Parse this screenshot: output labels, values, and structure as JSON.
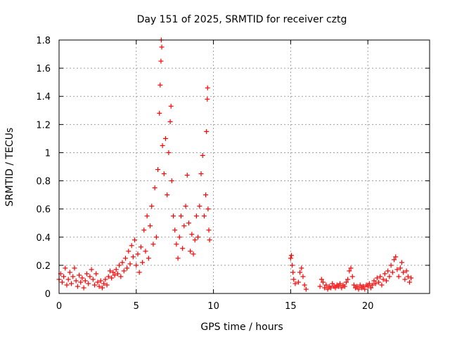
{
  "chart_data": {
    "type": "scatter",
    "title": "Day 151 of 2025, SRMTID for receiver cztg",
    "xlabel": "GPS time / hours",
    "ylabel": "SRMTID / TECUs",
    "xlim": [
      0,
      24
    ],
    "ylim": [
      0,
      1.8
    ],
    "xticks": [
      0,
      5,
      10,
      15,
      20
    ],
    "xtick_labels": [
      "0",
      "5",
      "10",
      "15",
      "20"
    ],
    "yticks": [
      0,
      0.2,
      0.4,
      0.6,
      0.8,
      1.0,
      1.2,
      1.4,
      1.6,
      1.8
    ],
    "ytick_labels": [
      "0",
      "0.2",
      "0.4",
      "0.6",
      "0.8",
      "1",
      "1.2",
      "1.4",
      "1.6",
      "1.8"
    ],
    "grid": true,
    "series": [
      {
        "name": "SRMTID",
        "marker": "plus",
        "color": "#ff0000",
        "points": [
          [
            0.0,
            0.1
          ],
          [
            0.1,
            0.14
          ],
          [
            0.2,
            0.08
          ],
          [
            0.3,
            0.12
          ],
          [
            0.4,
            0.18
          ],
          [
            0.5,
            0.06
          ],
          [
            0.6,
            0.1
          ],
          [
            0.7,
            0.15
          ],
          [
            0.8,
            0.07
          ],
          [
            0.9,
            0.12
          ],
          [
            1.0,
            0.18
          ],
          [
            1.1,
            0.09
          ],
          [
            1.2,
            0.05
          ],
          [
            1.3,
            0.13
          ],
          [
            1.4,
            0.08
          ],
          [
            1.5,
            0.11
          ],
          [
            1.6,
            0.04
          ],
          [
            1.7,
            0.09
          ],
          [
            1.8,
            0.14
          ],
          [
            1.9,
            0.07
          ],
          [
            2.0,
            0.12
          ],
          [
            2.1,
            0.17
          ],
          [
            2.2,
            0.1
          ],
          [
            2.3,
            0.06
          ],
          [
            2.4,
            0.14
          ],
          [
            2.5,
            0.08
          ],
          [
            2.6,
            0.05
          ],
          [
            2.7,
            0.09
          ],
          [
            2.8,
            0.04
          ],
          [
            2.9,
            0.07
          ],
          [
            3.0,
            0.1
          ],
          [
            3.1,
            0.06
          ],
          [
            3.2,
            0.12
          ],
          [
            3.3,
            0.16
          ],
          [
            3.4,
            0.11
          ],
          [
            3.5,
            0.15
          ],
          [
            3.6,
            0.13
          ],
          [
            3.7,
            0.17
          ],
          [
            3.8,
            0.14
          ],
          [
            3.9,
            0.2
          ],
          [
            4.0,
            0.12
          ],
          [
            4.1,
            0.22
          ],
          [
            4.2,
            0.16
          ],
          [
            4.3,
            0.25
          ],
          [
            4.4,
            0.18
          ],
          [
            4.5,
            0.3
          ],
          [
            4.6,
            0.21
          ],
          [
            4.7,
            0.34
          ],
          [
            4.8,
            0.26
          ],
          [
            4.9,
            0.38
          ],
          [
            5.0,
            0.2
          ],
          [
            5.1,
            0.28
          ],
          [
            5.2,
            0.15
          ],
          [
            5.3,
            0.33
          ],
          [
            5.4,
            0.22
          ],
          [
            5.5,
            0.45
          ],
          [
            5.6,
            0.3
          ],
          [
            5.7,
            0.55
          ],
          [
            5.8,
            0.25
          ],
          [
            5.9,
            0.48
          ],
          [
            6.0,
            0.62
          ],
          [
            6.1,
            0.35
          ],
          [
            6.2,
            0.75
          ],
          [
            6.3,
            0.4
          ],
          [
            6.4,
            0.88
          ],
          [
            6.5,
            1.28
          ],
          [
            6.55,
            1.48
          ],
          [
            6.6,
            1.65
          ],
          [
            6.62,
            1.8
          ],
          [
            6.65,
            1.75
          ],
          [
            6.7,
            1.05
          ],
          [
            6.8,
            0.85
          ],
          [
            6.9,
            1.1
          ],
          [
            7.0,
            0.7
          ],
          [
            7.1,
            1.0
          ],
          [
            7.2,
            1.22
          ],
          [
            7.25,
            1.33
          ],
          [
            7.3,
            0.8
          ],
          [
            7.4,
            0.55
          ],
          [
            7.5,
            0.45
          ],
          [
            7.6,
            0.35
          ],
          [
            7.7,
            0.25
          ],
          [
            7.8,
            0.4
          ],
          [
            7.9,
            0.55
          ],
          [
            8.0,
            0.32
          ],
          [
            8.1,
            0.48
          ],
          [
            8.2,
            0.62
          ],
          [
            8.3,
            0.84
          ],
          [
            8.4,
            0.5
          ],
          [
            8.5,
            0.3
          ],
          [
            8.6,
            0.42
          ],
          [
            8.7,
            0.28
          ],
          [
            8.8,
            0.38
          ],
          [
            8.9,
            0.55
          ],
          [
            9.0,
            0.4
          ],
          [
            9.1,
            0.62
          ],
          [
            9.2,
            0.85
          ],
          [
            9.3,
            0.98
          ],
          [
            9.4,
            0.55
          ],
          [
            9.5,
            0.7
          ],
          [
            9.55,
            1.15
          ],
          [
            9.6,
            1.38
          ],
          [
            9.62,
            1.46
          ],
          [
            9.65,
            0.6
          ],
          [
            9.7,
            0.45
          ],
          [
            9.75,
            0.38
          ],
          [
            15.0,
            0.25
          ],
          [
            15.05,
            0.27
          ],
          [
            15.1,
            0.2
          ],
          [
            15.15,
            0.15
          ],
          [
            15.2,
            0.1
          ],
          [
            15.3,
            0.07
          ],
          [
            15.5,
            0.08
          ],
          [
            15.6,
            0.15
          ],
          [
            15.7,
            0.18
          ],
          [
            15.8,
            0.12
          ],
          [
            15.9,
            0.06
          ],
          [
            16.0,
            0.03
          ],
          [
            16.9,
            0.05
          ],
          [
            17.0,
            0.1
          ],
          [
            17.1,
            0.08
          ],
          [
            17.2,
            0.04
          ],
          [
            17.3,
            0.06
          ],
          [
            17.4,
            0.03
          ],
          [
            17.5,
            0.05
          ],
          [
            17.6,
            0.04
          ],
          [
            17.7,
            0.07
          ],
          [
            17.8,
            0.05
          ],
          [
            17.9,
            0.04
          ],
          [
            18.0,
            0.06
          ],
          [
            18.1,
            0.05
          ],
          [
            18.2,
            0.07
          ],
          [
            18.3,
            0.04
          ],
          [
            18.4,
            0.06
          ],
          [
            18.5,
            0.05
          ],
          [
            18.6,
            0.08
          ],
          [
            18.7,
            0.1
          ],
          [
            18.8,
            0.16
          ],
          [
            18.9,
            0.18
          ],
          [
            19.0,
            0.12
          ],
          [
            19.1,
            0.06
          ],
          [
            19.2,
            0.04
          ],
          [
            19.3,
            0.05
          ],
          [
            19.4,
            0.03
          ],
          [
            19.5,
            0.06
          ],
          [
            19.6,
            0.04
          ],
          [
            19.7,
            0.05
          ],
          [
            19.8,
            0.03
          ],
          [
            19.9,
            0.06
          ],
          [
            20.0,
            0.05
          ],
          [
            20.1,
            0.07
          ],
          [
            20.2,
            0.04
          ],
          [
            20.3,
            0.06
          ],
          [
            20.4,
            0.09
          ],
          [
            20.5,
            0.07
          ],
          [
            20.6,
            0.11
          ],
          [
            20.7,
            0.08
          ],
          [
            20.8,
            0.12
          ],
          [
            20.9,
            0.06
          ],
          [
            21.0,
            0.1
          ],
          [
            21.1,
            0.14
          ],
          [
            21.2,
            0.09
          ],
          [
            21.3,
            0.16
          ],
          [
            21.4,
            0.12
          ],
          [
            21.5,
            0.2
          ],
          [
            21.6,
            0.15
          ],
          [
            21.7,
            0.24
          ],
          [
            21.8,
            0.26
          ],
          [
            21.9,
            0.17
          ],
          [
            22.0,
            0.12
          ],
          [
            22.1,
            0.18
          ],
          [
            22.2,
            0.22
          ],
          [
            22.3,
            0.15
          ],
          [
            22.4,
            0.1
          ],
          [
            22.5,
            0.16
          ],
          [
            22.6,
            0.12
          ],
          [
            22.7,
            0.08
          ],
          [
            22.8,
            0.11
          ]
        ]
      }
    ]
  }
}
